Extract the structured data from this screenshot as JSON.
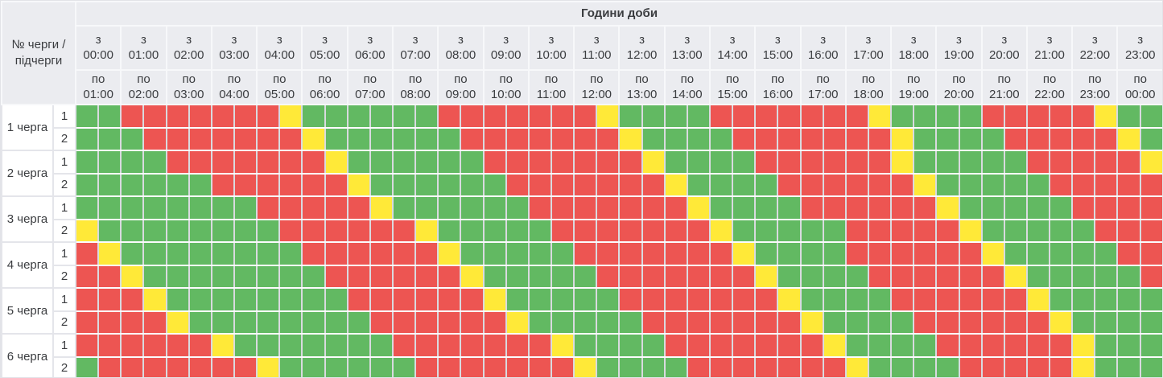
{
  "header": {
    "corner_label": "№ черги / підчерги",
    "title": "Години доби",
    "from_prefix": "з",
    "to_prefix": "по",
    "hours": [
      {
        "from": "00:00",
        "to": "01:00"
      },
      {
        "from": "01:00",
        "to": "02:00"
      },
      {
        "from": "02:00",
        "to": "03:00"
      },
      {
        "from": "03:00",
        "to": "04:00"
      },
      {
        "from": "04:00",
        "to": "05:00"
      },
      {
        "from": "05:00",
        "to": "06:00"
      },
      {
        "from": "06:00",
        "to": "07:00"
      },
      {
        "from": "07:00",
        "to": "08:00"
      },
      {
        "from": "08:00",
        "to": "09:00"
      },
      {
        "from": "09:00",
        "to": "10:00"
      },
      {
        "from": "10:00",
        "to": "11:00"
      },
      {
        "from": "11:00",
        "to": "12:00"
      },
      {
        "from": "12:00",
        "to": "13:00"
      },
      {
        "from": "13:00",
        "to": "14:00"
      },
      {
        "from": "14:00",
        "to": "15:00"
      },
      {
        "from": "15:00",
        "to": "16:00"
      },
      {
        "from": "16:00",
        "to": "17:00"
      },
      {
        "from": "17:00",
        "to": "18:00"
      },
      {
        "from": "18:00",
        "to": "19:00"
      },
      {
        "from": "19:00",
        "to": "20:00"
      },
      {
        "from": "20:00",
        "to": "21:00"
      },
      {
        "from": "21:00",
        "to": "22:00"
      },
      {
        "from": "22:00",
        "to": "23:00"
      },
      {
        "from": "23:00",
        "to": "00:00"
      }
    ]
  },
  "cell_colors": {
    "G": "#62b962",
    "R": "#ed5552",
    "Y": "#ffe938"
  },
  "slots_per_hour": 2,
  "queues": [
    {
      "label": "1 черга",
      "subqueues": [
        {
          "label": "1",
          "cells": "GGRRRRRRRYGGGGGGRRRRRRRYGGGGRRRRRRRYGGGGRRRRRYGG"
        },
        {
          "label": "2",
          "cells": "GGGRRRRRRRYGGGGGGRRRRRRRYGGGGRRRRRRRYGGGGRRRRRYG"
        }
      ]
    },
    {
      "label": "2 черга",
      "subqueues": [
        {
          "label": "1",
          "cells": "GGGGRRRRRRRYGGGGGGRRRRRRRYGGGGRRRRRRYGGGGGRRRRRY"
        },
        {
          "label": "2",
          "cells": "GGGGGGRRRRRRYGGGGGGRRRRRRRYGGGGRRRRRRYGGGGGRRRRR"
        }
      ]
    },
    {
      "label": "3 черга",
      "subqueues": [
        {
          "label": "1",
          "cells": "GGGGGGGGRRRRRYGGGGGGRRRRRRRYGGGGRRRRRRYGGGGGRRRR"
        },
        {
          "label": "2",
          "cells": "YGGGGGGGGRRRRRRYGGGGGRRRRRRRYGGGGGRRRRRYGGGGGRRR"
        }
      ]
    },
    {
      "label": "4 черга",
      "subqueues": [
        {
          "label": "1",
          "cells": "RYGGGGGGGGRRRRRRYGGGGGRRRRRRRYGGGGRRRRRRYGGGGGRR"
        },
        {
          "label": "2",
          "cells": "RRYGGGGGGGGRRRRRRYGGGGGRRRRRRRYGGGGRRRRRRYGGGGGR"
        }
      ]
    },
    {
      "label": "5 черга",
      "subqueues": [
        {
          "label": "1",
          "cells": "RRRYGGGGGGGGRRRRRRYGGGGGRRRRRRRYGGGGRRRRRRYGGGGG"
        },
        {
          "label": "2",
          "cells": "RRRRYGGGGGGGGRRRRRRYGGGGGRRRRRRRYGGGGRRRRRRYGGGG"
        }
      ]
    },
    {
      "label": "6 черга",
      "subqueues": [
        {
          "label": "1",
          "cells": "RRRRRRYGGGGGGGRRRRRRRYGGGGRRRRRRRYGGGGRRRRRRYGGG"
        },
        {
          "label": "2",
          "cells": "GRRRRRRRYGGGGGGRRRRRRRYGGGGRRRRRRRYGGGGRRRRRYGGG"
        }
      ]
    }
  ]
}
